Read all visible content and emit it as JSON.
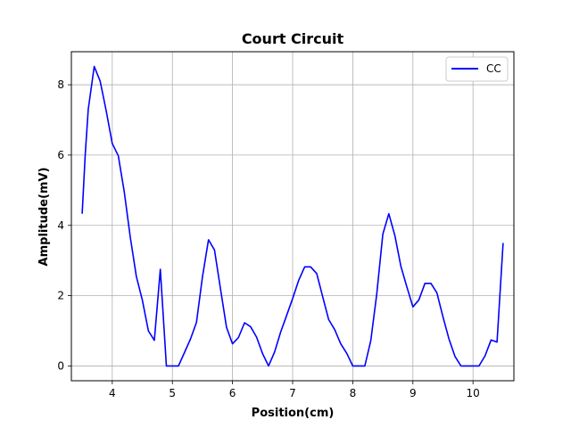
{
  "chart_data": {
    "type": "line",
    "title": "Court Circuit",
    "xlabel": "Position(cm)",
    "ylabel": "Amplitude(mV)",
    "xlim": [
      3.32,
      10.68
    ],
    "ylim": [
      -0.42,
      8.94
    ],
    "xticks": [
      4,
      5,
      6,
      7,
      8,
      9,
      10
    ],
    "yticks": [
      0,
      2,
      4,
      6,
      8
    ],
    "grid": true,
    "legend_position": "upper right",
    "series": [
      {
        "name": "CC",
        "color": "#0000ff",
        "x": [
          3.5,
          3.55,
          3.6,
          3.7,
          3.8,
          3.9,
          4.0,
          4.1,
          4.2,
          4.3,
          4.4,
          4.5,
          4.6,
          4.7,
          4.8,
          4.9,
          5.0,
          5.1,
          5.2,
          5.3,
          5.4,
          5.5,
          5.6,
          5.7,
          5.8,
          5.9,
          6.0,
          6.1,
          6.2,
          6.3,
          6.4,
          6.5,
          6.6,
          6.7,
          6.8,
          6.9,
          7.0,
          7.1,
          7.2,
          7.3,
          7.4,
          7.5,
          7.6,
          7.7,
          7.8,
          7.9,
          8.0,
          8.1,
          8.2,
          8.3,
          8.4,
          8.5,
          8.6,
          8.7,
          8.8,
          8.9,
          9.0,
          9.1,
          9.2,
          9.3,
          9.4,
          9.5,
          9.6,
          9.7,
          9.8,
          9.9,
          10.0,
          10.1,
          10.2,
          10.3,
          10.4,
          10.5
        ],
        "y": [
          4.33,
          6.0,
          7.3,
          8.52,
          8.1,
          7.25,
          6.33,
          5.98,
          4.95,
          3.67,
          2.55,
          1.88,
          1.0,
          0.73,
          2.75,
          0.0,
          0.0,
          0.0,
          0.38,
          0.76,
          1.24,
          2.53,
          3.59,
          3.3,
          2.2,
          1.1,
          0.63,
          0.81,
          1.23,
          1.12,
          0.82,
          0.35,
          0.0,
          0.4,
          0.96,
          1.44,
          1.92,
          2.43,
          2.82,
          2.82,
          2.63,
          1.97,
          1.32,
          1.03,
          0.63,
          0.36,
          0.0,
          0.0,
          0.0,
          0.72,
          2.05,
          3.75,
          4.33,
          3.71,
          2.84,
          2.25,
          1.68,
          1.88,
          2.35,
          2.35,
          2.08,
          1.4,
          0.77,
          0.27,
          0.0,
          0.0,
          0.0,
          0.0,
          0.29,
          0.74,
          0.68,
          3.5
        ]
      }
    ]
  }
}
